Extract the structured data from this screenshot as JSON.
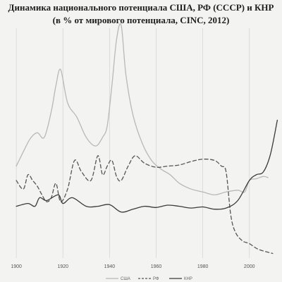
{
  "chart_data": {
    "type": "line",
    "title": "Динамика национального потенциала США, РФ (СССР) и КНР",
    "subtitle": "(в % от мирового потенциала, CINC, 2012)",
    "xlim": [
      1893,
      2014
    ],
    "ylim": [
      0,
      40
    ],
    "x_ticks": [
      "1900",
      "1920",
      "1940",
      "1960",
      "1980",
      "2000"
    ],
    "x_tick_values": [
      1900,
      1920,
      1940,
      1960,
      1980,
      2000
    ],
    "grid": "vertical",
    "legend_position": "bottom-center",
    "series": [
      {
        "name": "США",
        "style": "solid",
        "color": "#b8b8b8",
        "x": [
          1900,
          1903,
          1906,
          1909,
          1912,
          1915,
          1917,
          1919,
          1922,
          1926,
          1930,
          1934,
          1937,
          1939,
          1941,
          1943,
          1945,
          1947,
          1950,
          1954,
          1958,
          1962,
          1966,
          1970,
          1975,
          1980,
          1985,
          1990,
          1995,
          1998,
          2000,
          2003,
          2006,
          2008
        ],
        "y": [
          16.0,
          18.5,
          20.8,
          21.8,
          21.0,
          25.5,
          30.0,
          32.8,
          27.0,
          24.5,
          21.0,
          19.5,
          21.0,
          23.0,
          30.0,
          38.0,
          40.5,
          32.0,
          25.0,
          20.0,
          17.0,
          15.5,
          14.5,
          13.0,
          12.0,
          11.5,
          11.0,
          11.5,
          11.8,
          11.5,
          13.5,
          13.8,
          14.2,
          14.0
        ]
      },
      {
        "name": "РФ",
        "style": "dashed",
        "color": "#555555",
        "x": [
          1900,
          1903,
          1905,
          1907,
          1909,
          1911,
          1913,
          1915,
          1917,
          1919,
          1922,
          1925,
          1928,
          1932,
          1935,
          1937,
          1939,
          1941,
          1943,
          1945,
          1948,
          1951,
          1955,
          1960,
          1965,
          1970,
          1975,
          1980,
          1985,
          1988,
          1990,
          1992,
          1994,
          1997,
          2000,
          2004,
          2010
        ],
        "y": [
          13.5,
          12.0,
          14.5,
          13.5,
          12.5,
          11.0,
          9.8,
          10.5,
          13.0,
          9.8,
          12.0,
          17.0,
          15.0,
          13.5,
          17.8,
          14.5,
          16.0,
          17.0,
          14.2,
          13.5,
          16.0,
          17.8,
          16.5,
          15.8,
          16.0,
          16.2,
          16.8,
          17.2,
          17.0,
          16.0,
          15.0,
          7.5,
          4.5,
          3.0,
          2.5,
          1.5,
          0.8
        ]
      },
      {
        "name": "КНР",
        "style": "solid",
        "color": "#3a3a3a",
        "x": [
          1900,
          1905,
          1908,
          1910,
          1913,
          1918,
          1920,
          1924,
          1930,
          1935,
          1940,
          1945,
          1950,
          1955,
          1960,
          1965,
          1970,
          1975,
          1980,
          1985,
          1990,
          1995,
          2000,
          2003,
          2006,
          2009,
          2012
        ],
        "y": [
          9.0,
          9.5,
          9.0,
          10.5,
          10.0,
          11.0,
          9.5,
          10.5,
          9.0,
          9.0,
          9.3,
          8.0,
          8.5,
          9.0,
          8.8,
          9.2,
          9.0,
          8.7,
          8.9,
          8.5,
          8.7,
          10.0,
          13.5,
          14.5,
          15.0,
          18.0,
          24.0
        ]
      }
    ]
  }
}
